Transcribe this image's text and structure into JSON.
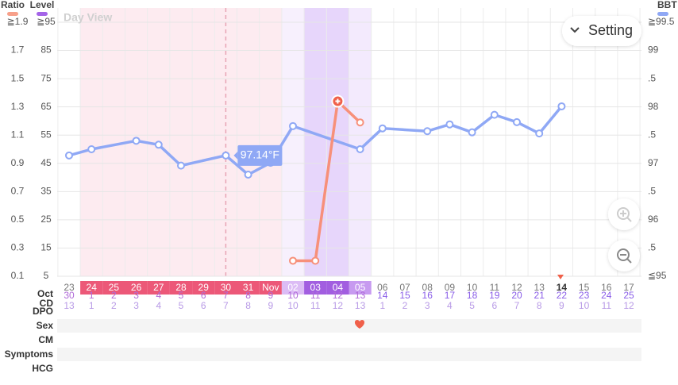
{
  "chart_data": {
    "type": "line",
    "view_label": "Day View",
    "setting_label": "Setting",
    "categories": [
      "23",
      "24",
      "25",
      "26",
      "27",
      "28",
      "29",
      "30",
      "31",
      "Nov",
      "02",
      "03",
      "04",
      "05",
      "06",
      "07",
      "08",
      "09",
      "10",
      "11",
      "12",
      "13",
      "14",
      "15",
      "16",
      "17"
    ],
    "month_label": "Oct",
    "cd": {
      "label": "CD",
      "values": [
        30,
        1,
        2,
        3,
        4,
        5,
        6,
        7,
        8,
        9,
        10,
        11,
        12,
        13,
        14,
        15,
        16,
        17,
        18,
        19,
        20,
        21,
        22,
        23,
        24,
        25
      ]
    },
    "dpo": {
      "label": "DPO",
      "values": [
        13,
        1,
        2,
        3,
        4,
        5,
        6,
        7,
        8,
        9,
        10,
        11,
        12,
        13,
        1,
        2,
        3,
        4,
        5,
        6,
        7,
        8,
        9,
        10,
        11,
        12
      ]
    },
    "log_rows": [
      "Sex",
      "CM",
      "Symptoms",
      "HCG"
    ],
    "y_axes": [
      {
        "label": "Ratio",
        "color": "#f7a08a",
        "ylim": [
          0.1,
          1.9
        ],
        "yticks": [
          0.1,
          0.3,
          0.5,
          0.7,
          0.9,
          1.1,
          1.3,
          1.5,
          1.7,
          {
            "value": 1.9,
            "label": "≧1.9"
          }
        ]
      },
      {
        "label": "Level",
        "color": "#a464e8",
        "ylim": [
          5,
          95
        ],
        "yticks": [
          5,
          15,
          25,
          35,
          45,
          55,
          65,
          75,
          85,
          {
            "value": 95,
            "label": "≧95"
          }
        ]
      },
      {
        "label": "BBT",
        "color": "#8fa8f5",
        "ylim": [
          95,
          99.5
        ],
        "yticks": [
          {
            "value": 95,
            "label": "≦95"
          },
          {
            "value": 95.5,
            "label": ".5"
          },
          96,
          {
            "value": 96.5,
            "label": ".5"
          },
          97,
          {
            "value": 97.5,
            "label": ".5"
          },
          98,
          {
            "value": 98.5,
            "label": ".5"
          },
          99,
          {
            "value": 99.5,
            "label": "≧99.5"
          }
        ]
      }
    ],
    "series": [
      {
        "axis": 2,
        "color": "#8fa8f5",
        "x": [
          0,
          1,
          3,
          4,
          5,
          7,
          8,
          9,
          10,
          13,
          14,
          16,
          17,
          18,
          19,
          20,
          21,
          22
        ],
        "values": [
          97.14,
          97.25,
          97.4,
          97.33,
          96.96,
          97.14,
          96.8,
          97.01,
          97.66,
          97.25,
          97.62,
          97.57,
          97.69,
          97.55,
          97.86,
          97.73,
          97.53,
          98.01
        ]
      },
      {
        "axis": 0,
        "color": "#f7907a",
        "x": [
          10,
          11,
          12,
          13
        ],
        "values": [
          0.21,
          0.21,
          1.34,
          1.19
        ]
      }
    ],
    "tooltip": "97.14°F"
  }
}
